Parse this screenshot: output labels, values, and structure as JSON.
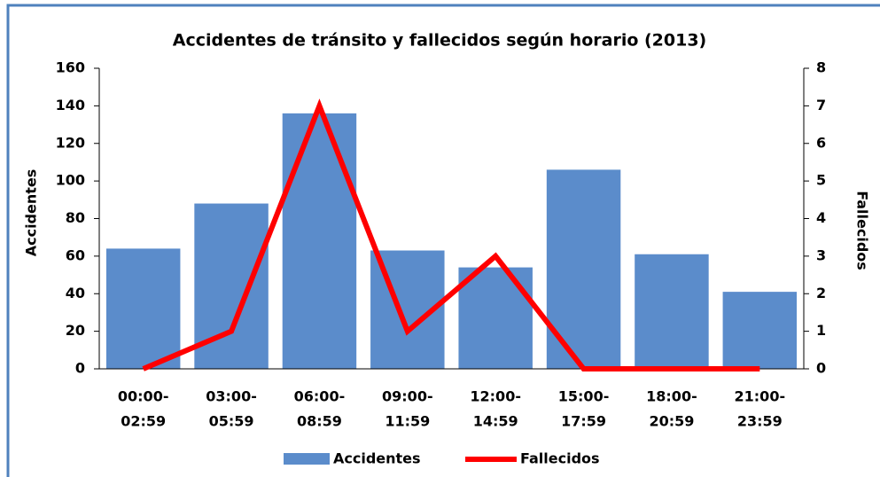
{
  "chart_data": {
    "type": "bar_line",
    "title": "Accidentes de tránsito y fallecidos según horario (2013)",
    "y_label": "Accidentes",
    "y2_label": "Fallecidos",
    "categories": [
      [
        "00:00-",
        "02:59"
      ],
      [
        "03:00-",
        "05:59"
      ],
      [
        "06:00-",
        "08:59"
      ],
      [
        "09:00-",
        "11:59"
      ],
      [
        "12:00-",
        "14:59"
      ],
      [
        "15:00-",
        "17:59"
      ],
      [
        "18:00-",
        "20:59"
      ],
      [
        "21:00-",
        "23:59"
      ]
    ],
    "series": [
      {
        "name": "Accidentes",
        "type": "bar",
        "color": "#5b8ccb",
        "values": [
          64,
          88,
          136,
          63,
          54,
          106,
          61,
          41
        ]
      },
      {
        "name": "Fallecidos",
        "type": "line",
        "axis": "y2",
        "color": "#ff0000",
        "values": [
          0,
          1,
          7,
          1,
          3,
          0,
          0,
          0
        ]
      }
    ],
    "ylim": [
      0,
      160
    ],
    "yticks": [
      0,
      20,
      40,
      60,
      80,
      100,
      120,
      140,
      160
    ],
    "y2lim": [
      0,
      8
    ],
    "y2ticks": [
      0,
      1,
      2,
      3,
      4,
      5,
      6,
      7,
      8
    ],
    "legend": "bottom"
  }
}
